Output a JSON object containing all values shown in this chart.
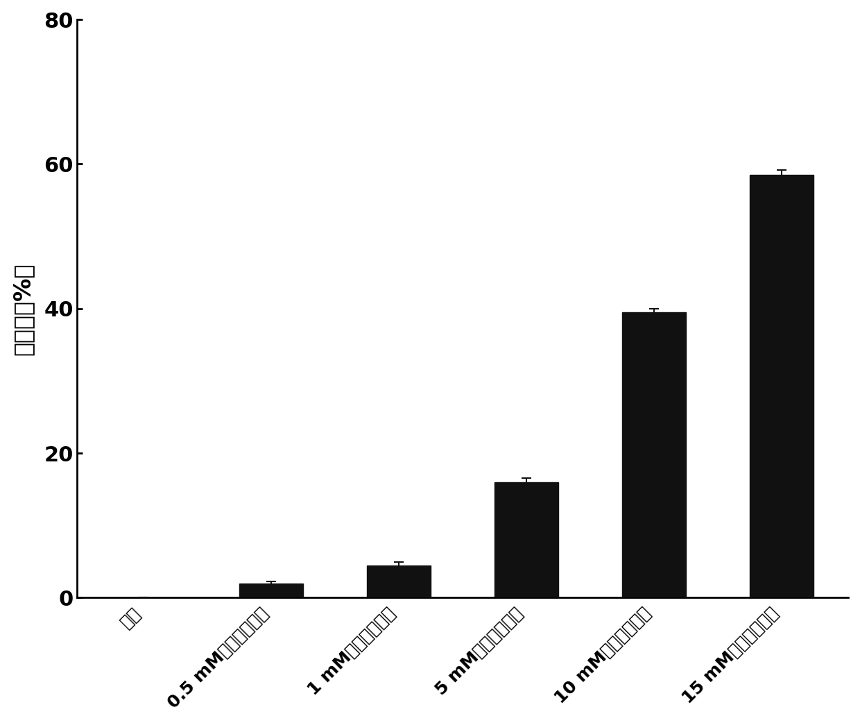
{
  "categories": [
    "对照",
    "0.5 mM去甲槟榜次碱",
    "1 mM去甲槟榜次碱",
    "5 mM去甲槟榜次碱",
    "10 mM去甲槟榜次碱",
    "15 mM去甲槟榜次碱"
  ],
  "values": [
    0.0,
    2.0,
    4.5,
    16.0,
    39.5,
    58.5
  ],
  "errors": [
    0.0,
    0.3,
    0.4,
    0.6,
    0.5,
    0.7
  ],
  "bar_color": "#111111",
  "ylabel": "清除率（%）",
  "ylim": [
    0,
    80
  ],
  "yticks": [
    0,
    20,
    40,
    60,
    80
  ],
  "background_color": "#ffffff",
  "bar_width": 0.5,
  "ylabel_fontsize": 24,
  "tick_fontsize": 22,
  "xtick_fontsize": 18
}
